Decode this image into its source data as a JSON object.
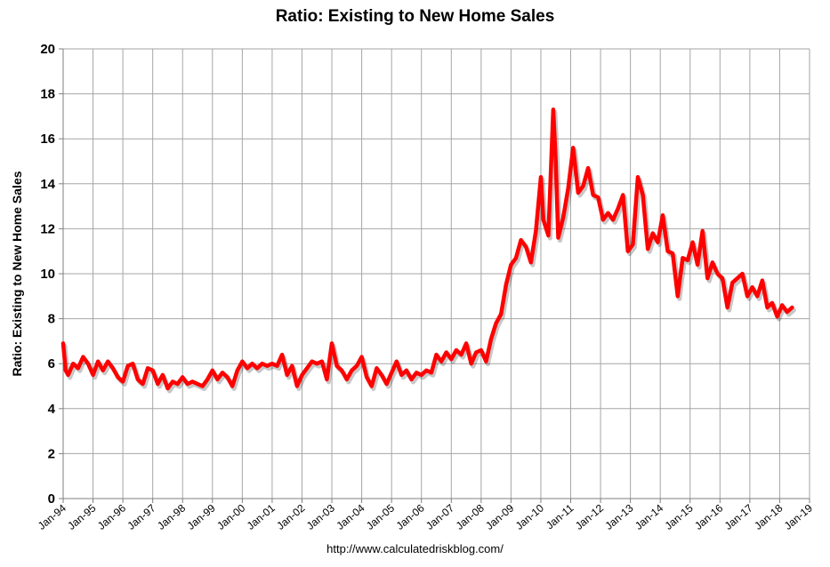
{
  "footer": {
    "url": "http://www.calculatedriskblog.com/"
  },
  "colors": {
    "series": "#ff0000",
    "grid": "#a6a6a6",
    "axis": "#7f7f7f",
    "text": "#000000"
  },
  "chart_data": {
    "type": "line",
    "title": "Ratio: Existing to New Home Sales",
    "xlabel": "",
    "ylabel": "Ratio: Existing to New Home Sales",
    "ylim": [
      0,
      20
    ],
    "yticks": [
      0,
      2,
      4,
      6,
      8,
      10,
      12,
      14,
      16,
      18,
      20
    ],
    "xlim": [
      "Jan-94",
      "Jan-19"
    ],
    "xticks": [
      "Jan-94",
      "Jan-95",
      "Jan-96",
      "Jan-97",
      "Jan-98",
      "Jan-99",
      "Jan-00",
      "Jan-01",
      "Jan-02",
      "Jan-03",
      "Jan-04",
      "Jan-05",
      "Jan-06",
      "Jan-07",
      "Jan-08",
      "Jan-09",
      "Jan-10",
      "Jan-11",
      "Jan-12",
      "Jan-13",
      "Jan-14",
      "Jan-15",
      "Jan-16",
      "Jan-17",
      "Jan-18",
      "Jan-19"
    ],
    "grid": true,
    "legend": "none",
    "series": [
      {
        "color": "#ff0000",
        "points": [
          [
            "1994-01",
            6.9
          ],
          [
            "1994-02",
            5.7
          ],
          [
            "1994-03",
            5.5
          ],
          [
            "1994-05",
            6.0
          ],
          [
            "1994-07",
            5.8
          ],
          [
            "1994-09",
            6.3
          ],
          [
            "1994-11",
            6.0
          ],
          [
            "1995-01",
            5.5
          ],
          [
            "1995-03",
            6.1
          ],
          [
            "1995-05",
            5.7
          ],
          [
            "1995-07",
            6.1
          ],
          [
            "1995-09",
            5.8
          ],
          [
            "1995-11",
            5.4
          ],
          [
            "1996-01",
            5.2
          ],
          [
            "1996-03",
            5.9
          ],
          [
            "1996-05",
            6.0
          ],
          [
            "1996-07",
            5.3
          ],
          [
            "1996-09",
            5.1
          ],
          [
            "1996-11",
            5.8
          ],
          [
            "1997-01",
            5.7
          ],
          [
            "1997-03",
            5.1
          ],
          [
            "1997-05",
            5.5
          ],
          [
            "1997-07",
            4.9
          ],
          [
            "1997-09",
            5.2
          ],
          [
            "1997-11",
            5.1
          ],
          [
            "1998-01",
            5.4
          ],
          [
            "1998-03",
            5.1
          ],
          [
            "1998-05",
            5.2
          ],
          [
            "1998-07",
            5.1
          ],
          [
            "1998-09",
            5.0
          ],
          [
            "1998-11",
            5.3
          ],
          [
            "1999-01",
            5.7
          ],
          [
            "1999-03",
            5.3
          ],
          [
            "1999-05",
            5.6
          ],
          [
            "1999-07",
            5.4
          ],
          [
            "1999-09",
            5.0
          ],
          [
            "1999-11",
            5.7
          ],
          [
            "2000-01",
            6.1
          ],
          [
            "2000-03",
            5.8
          ],
          [
            "2000-05",
            6.0
          ],
          [
            "2000-07",
            5.8
          ],
          [
            "2000-09",
            6.0
          ],
          [
            "2000-11",
            5.9
          ],
          [
            "2001-01",
            6.0
          ],
          [
            "2001-03",
            5.9
          ],
          [
            "2001-05",
            6.4
          ],
          [
            "2001-07",
            5.5
          ],
          [
            "2001-09",
            5.9
          ],
          [
            "2001-11",
            5.0
          ],
          [
            "2002-01",
            5.5
          ],
          [
            "2002-03",
            5.8
          ],
          [
            "2002-05",
            6.1
          ],
          [
            "2002-07",
            6.0
          ],
          [
            "2002-09",
            6.1
          ],
          [
            "2002-11",
            5.3
          ],
          [
            "2003-01",
            6.9
          ],
          [
            "2003-03",
            5.9
          ],
          [
            "2003-05",
            5.7
          ],
          [
            "2003-07",
            5.3
          ],
          [
            "2003-09",
            5.7
          ],
          [
            "2003-11",
            5.9
          ],
          [
            "2004-01",
            6.3
          ],
          [
            "2004-03",
            5.4
          ],
          [
            "2004-05",
            5.0
          ],
          [
            "2004-07",
            5.8
          ],
          [
            "2004-09",
            5.5
          ],
          [
            "2004-11",
            5.1
          ],
          [
            "2005-01",
            5.6
          ],
          [
            "2005-03",
            6.1
          ],
          [
            "2005-05",
            5.5
          ],
          [
            "2005-07",
            5.7
          ],
          [
            "2005-09",
            5.3
          ],
          [
            "2005-11",
            5.6
          ],
          [
            "2006-01",
            5.5
          ],
          [
            "2006-03",
            5.7
          ],
          [
            "2006-05",
            5.6
          ],
          [
            "2006-07",
            6.4
          ],
          [
            "2006-09",
            6.1
          ],
          [
            "2006-11",
            6.5
          ],
          [
            "2007-01",
            6.2
          ],
          [
            "2007-03",
            6.6
          ],
          [
            "2007-05",
            6.4
          ],
          [
            "2007-07",
            6.9
          ],
          [
            "2007-09",
            6.0
          ],
          [
            "2007-11",
            6.5
          ],
          [
            "2008-01",
            6.6
          ],
          [
            "2008-03",
            6.1
          ],
          [
            "2008-05",
            7.1
          ],
          [
            "2008-07",
            7.8
          ],
          [
            "2008-09",
            8.2
          ],
          [
            "2008-11",
            9.5
          ],
          [
            "2009-01",
            10.4
          ],
          [
            "2009-03",
            10.7
          ],
          [
            "2009-05",
            11.5
          ],
          [
            "2009-07",
            11.2
          ],
          [
            "2009-09",
            10.5
          ],
          [
            "2009-11",
            11.9
          ],
          [
            "2010-01",
            14.3
          ],
          [
            "2010-02",
            12.4
          ],
          [
            "2010-04",
            11.7
          ],
          [
            "2010-06",
            17.3
          ],
          [
            "2010-07",
            15.0
          ],
          [
            "2010-08",
            11.6
          ],
          [
            "2010-10",
            12.5
          ],
          [
            "2010-12",
            13.8
          ],
          [
            "2011-02",
            15.6
          ],
          [
            "2011-04",
            13.6
          ],
          [
            "2011-06",
            13.9
          ],
          [
            "2011-08",
            14.7
          ],
          [
            "2011-10",
            13.5
          ],
          [
            "2011-12",
            13.4
          ],
          [
            "2012-02",
            12.4
          ],
          [
            "2012-04",
            12.7
          ],
          [
            "2012-06",
            12.4
          ],
          [
            "2012-08",
            12.9
          ],
          [
            "2012-10",
            13.5
          ],
          [
            "2012-12",
            11.0
          ],
          [
            "2013-02",
            11.3
          ],
          [
            "2013-04",
            14.3
          ],
          [
            "2013-06",
            13.5
          ],
          [
            "2013-08",
            11.1
          ],
          [
            "2013-10",
            11.8
          ],
          [
            "2013-12",
            11.4
          ],
          [
            "2014-02",
            12.6
          ],
          [
            "2014-04",
            11.0
          ],
          [
            "2014-06",
            10.9
          ],
          [
            "2014-08",
            9.0
          ],
          [
            "2014-10",
            10.7
          ],
          [
            "2014-12",
            10.6
          ],
          [
            "2015-02",
            11.4
          ],
          [
            "2015-04",
            10.4
          ],
          [
            "2015-06",
            11.9
          ],
          [
            "2015-08",
            9.8
          ],
          [
            "2015-10",
            10.5
          ],
          [
            "2015-12",
            10.0
          ],
          [
            "2016-02",
            9.8
          ],
          [
            "2016-04",
            8.5
          ],
          [
            "2016-06",
            9.6
          ],
          [
            "2016-08",
            9.8
          ],
          [
            "2016-10",
            10.0
          ],
          [
            "2016-12",
            9.0
          ],
          [
            "2017-02",
            9.4
          ],
          [
            "2017-04",
            9.0
          ],
          [
            "2017-06",
            9.7
          ],
          [
            "2017-08",
            8.5
          ],
          [
            "2017-10",
            8.7
          ],
          [
            "2017-12",
            8.1
          ],
          [
            "2018-02",
            8.6
          ],
          [
            "2018-04",
            8.3
          ],
          [
            "2018-06",
            8.5
          ]
        ]
      }
    ]
  }
}
